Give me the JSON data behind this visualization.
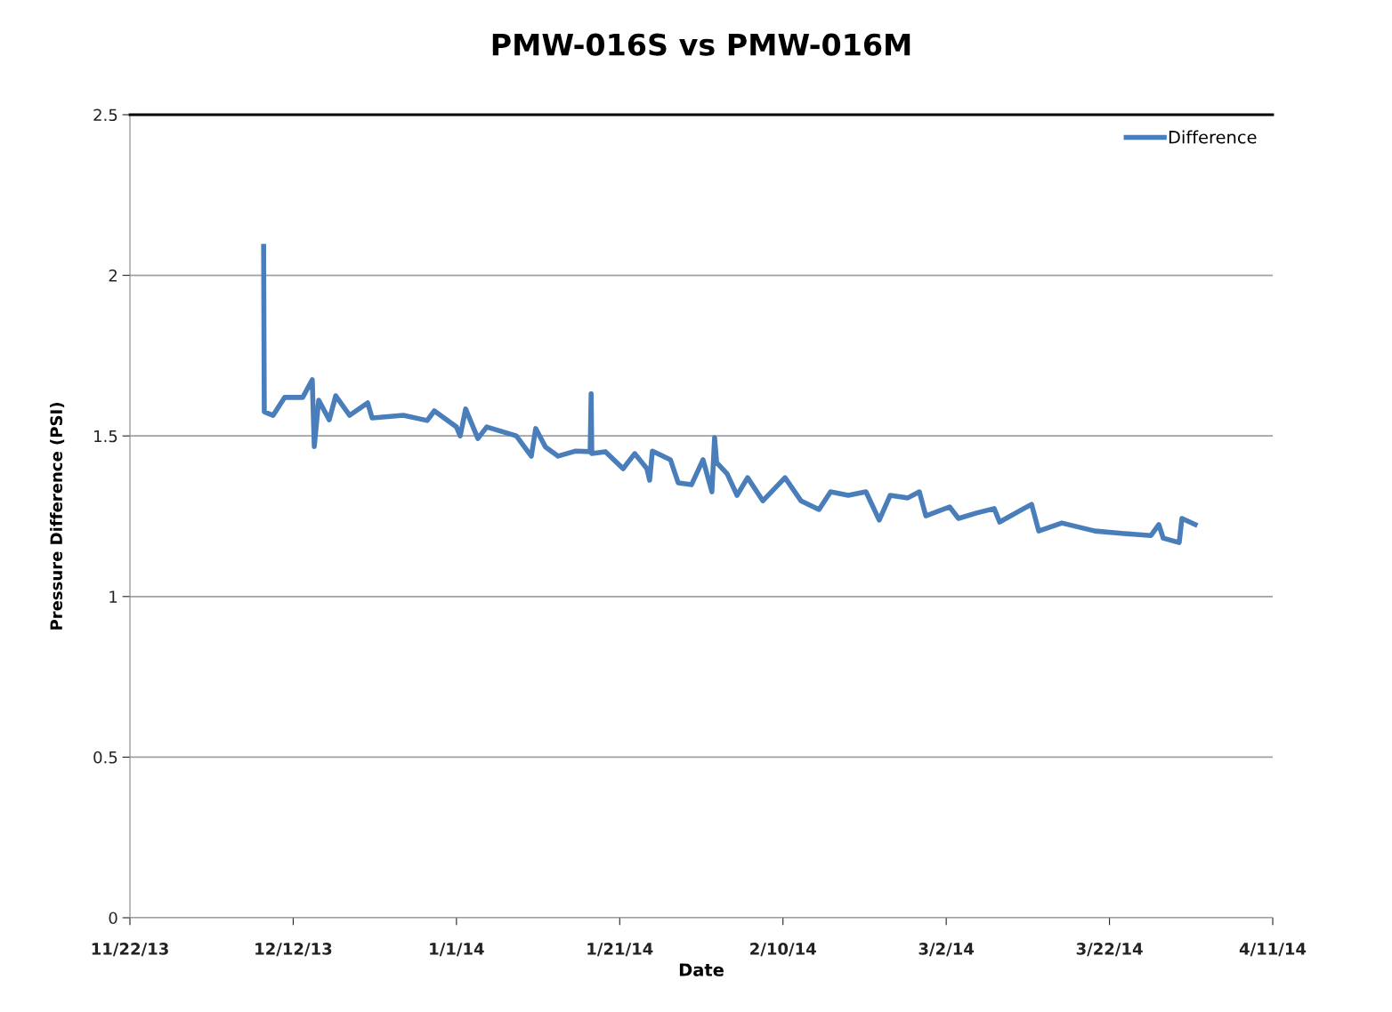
{
  "chart_data": {
    "type": "line",
    "title": "PMW-016S vs PMW-016M",
    "xlabel": "Date",
    "ylabel": "Pressure Difference (PSI)",
    "xlim": [
      "2013-11-22",
      "2014-04-11"
    ],
    "xticks": [
      {
        "value": "2013-11-22",
        "label": "11/22/13"
      },
      {
        "value": "2013-12-12",
        "label": "12/12/13"
      },
      {
        "value": "2014-01-01",
        "label": "1/1/14"
      },
      {
        "value": "2014-01-21",
        "label": "1/21/14"
      },
      {
        "value": "2014-02-10",
        "label": "2/10/14"
      },
      {
        "value": "2014-03-02",
        "label": "3/2/14"
      },
      {
        "value": "2014-03-22",
        "label": "3/22/14"
      },
      {
        "value": "2014-04-11",
        "label": "4/11/14"
      }
    ],
    "ylim": [
      0,
      2.5
    ],
    "yticks": [
      0,
      0.5,
      1,
      1.5,
      2,
      2.5
    ],
    "grid": "y",
    "legend": "top right",
    "marker": "none",
    "line_style": "solid",
    "series": [
      {
        "name": "Difference",
        "color": "#4a7ebb",
        "x": [
          "2013-12-08T09:00",
          "2013-12-08T11:00",
          "2013-12-09T13:00",
          "2013-12-10T23:00",
          "2013-12-13T04:00",
          "2013-12-14T08:00",
          "2013-12-14T14:00",
          "2013-12-15T03:00",
          "2013-12-16T10:00",
          "2013-12-17T05:00",
          "2013-12-18T22:00",
          "2013-12-21T03:00",
          "2013-12-21T16:00",
          "2013-12-25T12:00",
          "2013-12-28T10:00",
          "2013-12-29T07:00",
          "2014-01-01T00:00",
          "2014-01-01T11:00",
          "2014-01-02T03:00",
          "2014-01-03T15:00",
          "2014-01-04T17:00",
          "2014-01-08T08:00",
          "2014-01-10T04:00",
          "2014-01-10T17:00",
          "2014-01-11T22:00",
          "2014-01-13T11:00",
          "2014-01-15T15:00",
          "2014-01-17T09:00",
          "2014-01-17T12:00",
          "2014-01-17T14:00",
          "2014-01-19T06:00",
          "2014-01-21T10:00",
          "2014-01-22T20:00",
          "2014-01-24T08:00",
          "2014-01-24T16:00",
          "2014-01-25T00:00",
          "2014-01-27T05:00",
          "2014-01-28T04:00",
          "2014-01-29T19:00",
          "2014-01-31T05:00",
          "2014-02-01T07:00",
          "2014-02-01T15:00",
          "2014-02-01T21:00",
          "2014-02-03T04:00",
          "2014-02-04T09:00",
          "2014-02-05T16:00",
          "2014-02-07T13:00",
          "2014-02-10T06:00",
          "2014-02-12T05:00",
          "2014-02-14T10:00",
          "2014-02-15T20:00",
          "2014-02-18T00:00",
          "2014-02-20T04:00",
          "2014-02-21T19:00",
          "2014-02-23T03:00",
          "2014-02-25T07:00",
          "2014-02-26T17:00",
          "2014-02-27T12:00",
          "2014-03-02T10:00",
          "2014-03-03T12:00",
          "2014-03-05T17:00",
          "2014-03-07T21:00",
          "2014-03-08T13:00",
          "2014-03-11T12:00",
          "2014-03-12T11:00",
          "2014-03-13T08:00",
          "2014-03-16T04:00",
          "2014-03-20T05:00",
          "2014-03-23T19:00",
          "2014-03-27T02:00",
          "2014-03-28T01:00",
          "2014-03-28T14:00",
          "2014-03-30T13:00",
          "2014-03-30T21:00",
          "2014-04-01T12:00"
        ],
        "values": [
          2.09,
          1.575,
          1.564,
          1.62,
          1.62,
          1.675,
          1.467,
          1.611,
          1.55,
          1.625,
          1.564,
          1.603,
          1.556,
          1.564,
          1.548,
          1.578,
          1.528,
          1.5,
          1.584,
          1.492,
          1.528,
          1.5,
          1.437,
          1.523,
          1.465,
          1.437,
          1.453,
          1.451,
          1.631,
          1.445,
          1.451,
          1.398,
          1.445,
          1.398,
          1.362,
          1.453,
          1.426,
          1.354,
          1.348,
          1.426,
          1.326,
          1.495,
          1.417,
          1.382,
          1.315,
          1.37,
          1.298,
          1.37,
          1.298,
          1.271,
          1.326,
          1.315,
          1.326,
          1.238,
          1.315,
          1.307,
          1.326,
          1.251,
          1.279,
          1.243,
          1.26,
          1.274,
          1.232,
          1.274,
          1.287,
          1.204,
          1.229,
          1.204,
          1.196,
          1.19,
          1.224,
          1.182,
          1.168,
          1.243,
          1.224
        ]
      }
    ]
  }
}
